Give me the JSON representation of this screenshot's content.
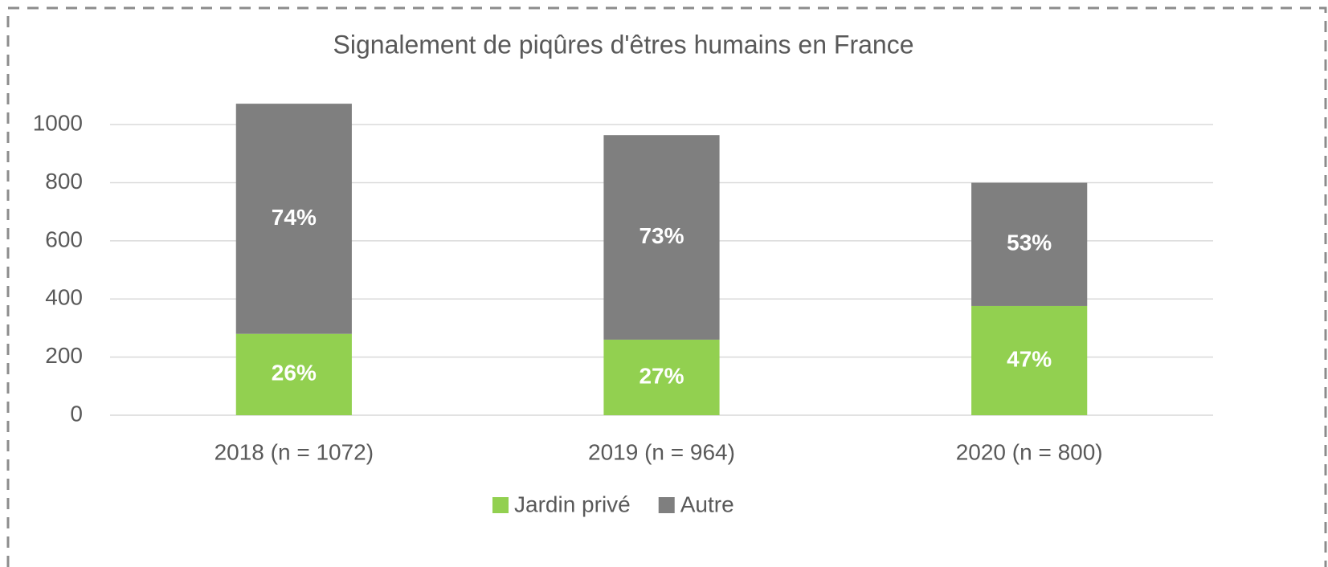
{
  "chart_data": {
    "type": "stacked_bar",
    "title": "Signalement de piqûres d'êtres humains en France",
    "categories": [
      "2018 (n = 1072)",
      "2019 (n = 964)",
      "2020 (n = 800)"
    ],
    "series": [
      {
        "name": "Jardin privé",
        "color": "#92d050",
        "values": [
          280,
          260,
          376
        ],
        "data_labels": [
          "26%",
          "27%",
          "47%"
        ]
      },
      {
        "name": "Autre",
        "color": "#7f7f7f",
        "values": [
          792,
          704,
          424
        ],
        "data_labels": [
          "74%",
          "73%",
          "53%"
        ]
      }
    ],
    "ylim": [
      0,
      1100
    ],
    "yticks": [
      0,
      200,
      400,
      600,
      800,
      1000
    ],
    "grid": true,
    "legend": "bottom"
  }
}
